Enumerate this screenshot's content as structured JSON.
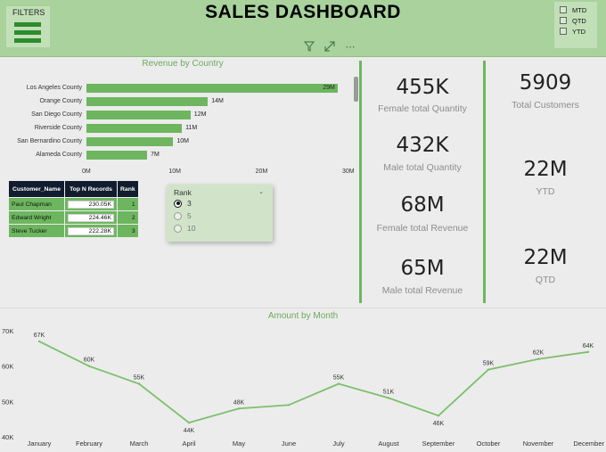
{
  "header": {
    "title": "SALES DASHBOARD",
    "filters_label": "FILTERS",
    "period_options": [
      "MTD",
      "QTD",
      "YTD"
    ]
  },
  "revenue_by_country": {
    "title": "Revenue by Country",
    "axis_ticks": [
      "0M",
      "10M",
      "20M",
      "30M"
    ]
  },
  "top_n_table": {
    "headers": [
      "Customer_Name",
      "Top N Records",
      "Rank"
    ],
    "rows": [
      {
        "name": "Paul Chapman",
        "value": "230.05K",
        "rank": "1"
      },
      {
        "name": "Edward Wright",
        "value": "224.46K",
        "rank": "2"
      },
      {
        "name": "Steve Tucker",
        "value": "222.28K",
        "rank": "3"
      }
    ]
  },
  "rank_slicer": {
    "title": "Rank",
    "options": [
      "3",
      "5",
      "10"
    ],
    "selected": "3"
  },
  "kpis": {
    "female_qty": {
      "value": "455K",
      "label": "Female total Quantity"
    },
    "male_qty": {
      "value": "432K",
      "label": "Male total Quantity"
    },
    "female_rev": {
      "value": "68M",
      "label": "Female total Revenue"
    },
    "male_rev": {
      "value": "65M",
      "label": "Male total Revenue"
    },
    "customers": {
      "value": "5909",
      "label": "Total Customers"
    },
    "ytd": {
      "value": "22M",
      "label": "YTD"
    },
    "qtd": {
      "value": "22M",
      "label": "QTD"
    }
  },
  "colors": {
    "accent": "#6db65f",
    "header_bg": "#a9d29c",
    "table_header": "#111d2e"
  },
  "chart_data": [
    {
      "type": "bar",
      "orientation": "horizontal",
      "title": "Revenue by Country",
      "categories": [
        "Los Angeles County",
        "Orange County",
        "San Diego County",
        "Riverside County",
        "San Bernardino County",
        "Alameda County"
      ],
      "values": [
        29,
        14,
        12,
        11,
        10,
        7
      ],
      "value_labels": [
        "29M",
        "14M",
        "12M",
        "11M",
        "10M",
        "7M"
      ],
      "unit": "M",
      "xlim": [
        0,
        30
      ]
    },
    {
      "type": "line",
      "title": "Amount by Month",
      "x": [
        "January",
        "February",
        "March",
        "April",
        "May",
        "June",
        "July",
        "August",
        "September",
        "October",
        "November",
        "December"
      ],
      "values": [
        67,
        60,
        55,
        44,
        48,
        49,
        55,
        51,
        46,
        59,
        62,
        64
      ],
      "value_labels": [
        "67K",
        "60K",
        "55K",
        "44K",
        "48K",
        "",
        "55K",
        "51K",
        "46K",
        "59K",
        "62K",
        "64K"
      ],
      "y_ticks": [
        "70K",
        "60K",
        "50K",
        "40K"
      ],
      "ylim": [
        40,
        70
      ],
      "unit": "K"
    }
  ]
}
